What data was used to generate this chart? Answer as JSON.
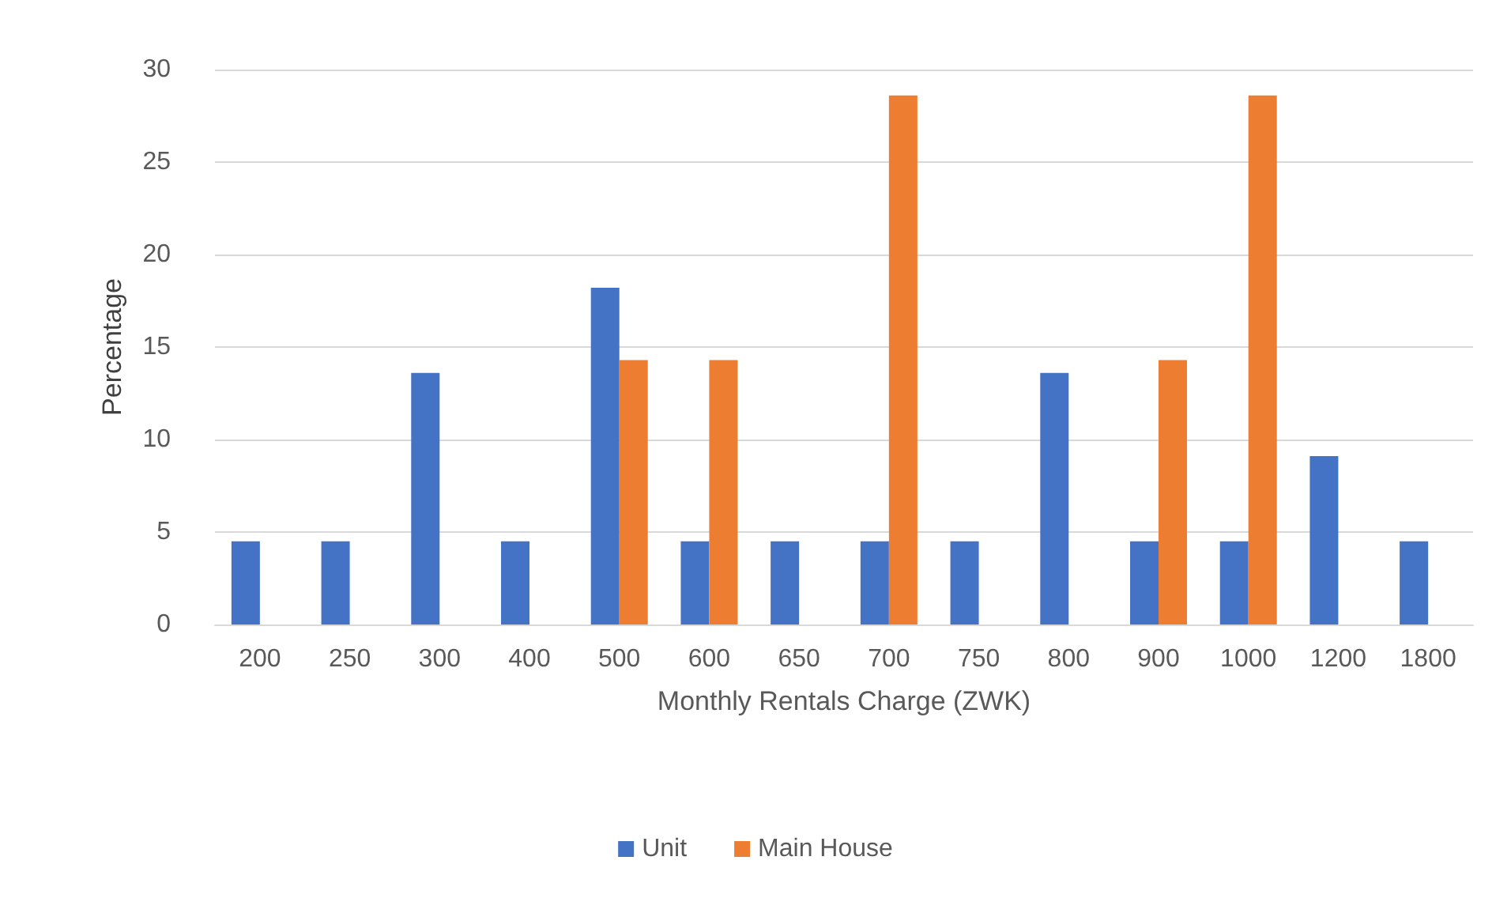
{
  "chart_data": {
    "type": "bar",
    "xlabel": "Monthly Rentals Charge (ZWK)",
    "ylabel": "Percentage",
    "categories": [
      "200",
      "250",
      "300",
      "400",
      "500",
      "600",
      "650",
      "700",
      "750",
      "800",
      "900",
      "1000",
      "1200",
      "1800"
    ],
    "series": [
      {
        "name": "Unit",
        "color": "#4472c4",
        "values": [
          4.5,
          4.5,
          13.6,
          4.5,
          18.2,
          4.5,
          4.5,
          4.5,
          4.5,
          13.6,
          4.5,
          4.5,
          9.1,
          4.5
        ]
      },
      {
        "name": "Main House",
        "color": "#ed7d31",
        "values": [
          null,
          null,
          null,
          null,
          14.3,
          14.3,
          null,
          28.6,
          null,
          null,
          14.3,
          28.6,
          null,
          null
        ]
      }
    ],
    "ylim": [
      0,
      30
    ],
    "yticks": [
      0,
      5,
      10,
      15,
      20,
      25,
      30
    ],
    "grid": "y",
    "legend": "bottom"
  }
}
